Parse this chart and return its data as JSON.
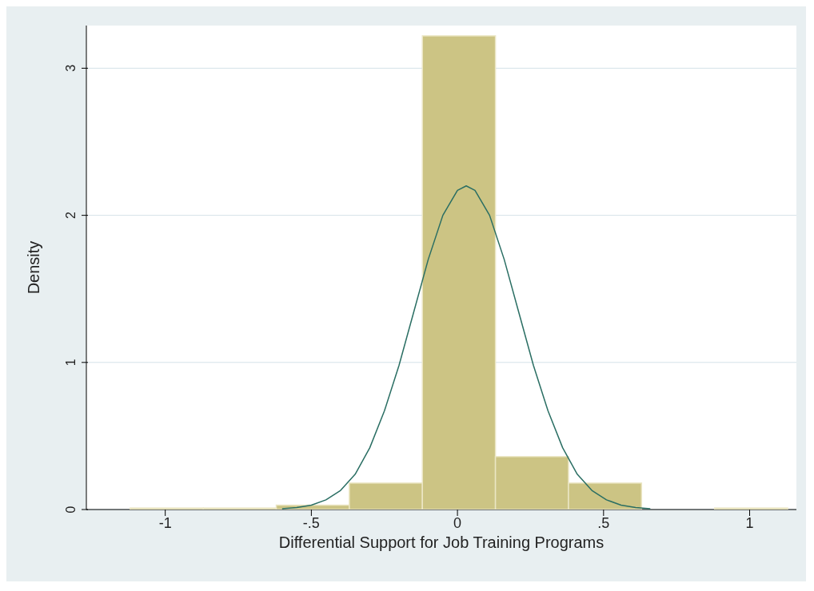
{
  "chart_data": {
    "type": "histogram",
    "xlabel": "Differential Support for Job Training Programs",
    "ylabel": "Density",
    "bins": [
      -1.12,
      -0.87,
      -0.62,
      -0.37,
      -0.12,
      0.13,
      0.38,
      0.63,
      0.88,
      1.13
    ],
    "values": [
      0.01,
      0.01,
      0.03,
      0.18,
      3.22,
      0.36,
      0.18,
      0,
      0.01
    ],
    "color": "#ccc484",
    "xlim": [
      -1.27,
      1.16
    ],
    "ylim": [
      0,
      3.29
    ],
    "xticks": [
      -1,
      {
        "value": -0.5,
        "label": "-.5"
      },
      0,
      {
        "value": 0.5,
        "label": ".5"
      },
      1
    ],
    "yticks": [
      0,
      1,
      2,
      3
    ],
    "grid": "y",
    "series": [
      {
        "type": "line",
        "color": "#2a6e63",
        "x": [
          -0.6,
          -0.55,
          -0.5,
          -0.45,
          -0.4,
          -0.35,
          -0.3,
          -0.25,
          -0.2,
          -0.15,
          -0.1,
          -0.05,
          0,
          0.03,
          0.06,
          0.11,
          0.16,
          0.21,
          0.26,
          0.31,
          0.36,
          0.41,
          0.46,
          0.51,
          0.56,
          0.61,
          0.66
        ],
        "values": [
          0.005,
          0.013,
          0.03,
          0.066,
          0.13,
          0.24,
          0.42,
          0.67,
          0.98,
          1.34,
          1.7,
          2.0,
          2.17,
          2.2,
          2.17,
          2.0,
          1.7,
          1.34,
          0.98,
          0.67,
          0.42,
          0.24,
          0.13,
          0.066,
          0.03,
          0.013,
          0.005
        ]
      }
    ]
  }
}
